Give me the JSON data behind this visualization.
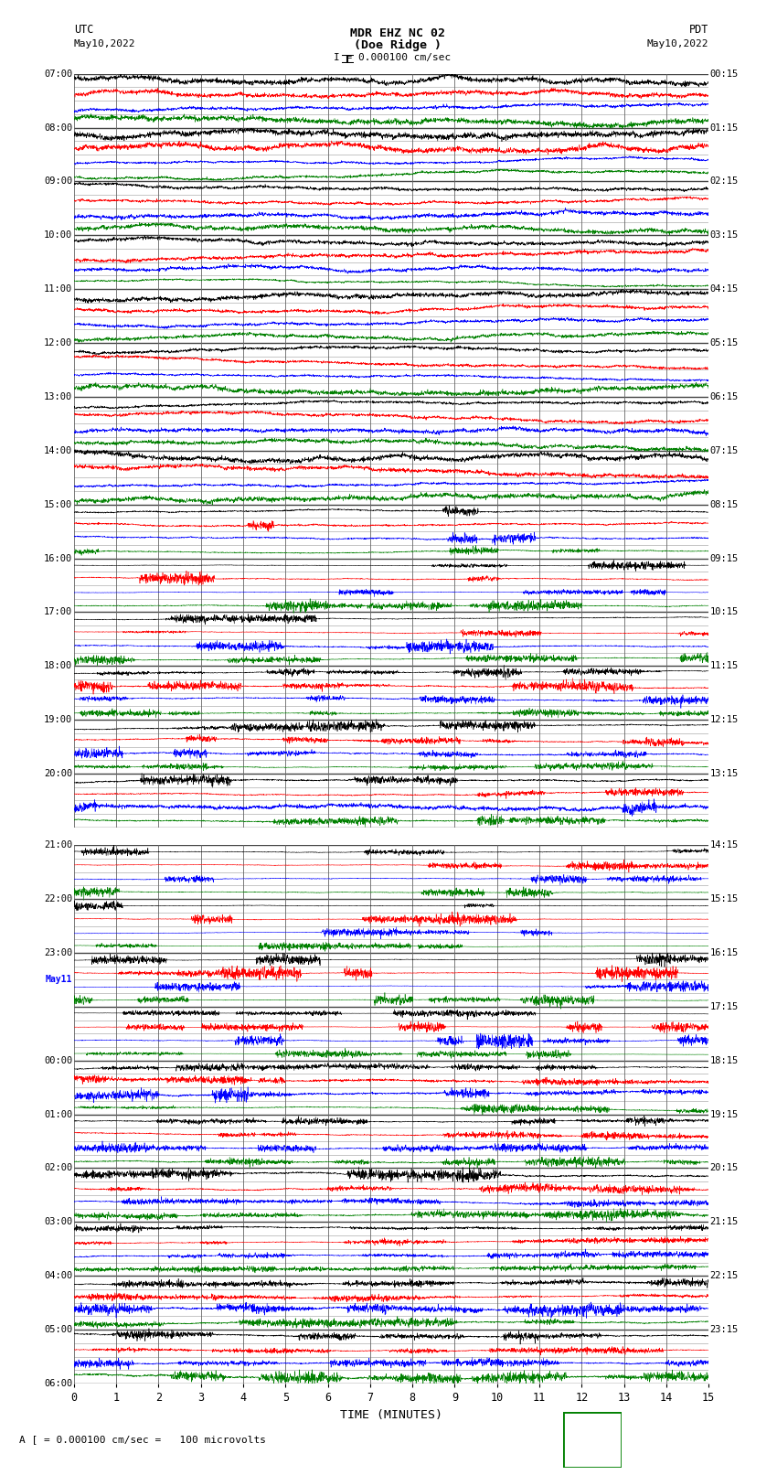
{
  "title_line1": "MDR EHZ NC 02",
  "title_line2": "(Doe Ridge )",
  "scale_label": "I = 0.000100 cm/sec",
  "utc_label": "UTC",
  "pdt_label": "PDT",
  "date_left": "May10,2022",
  "date_right": "May10,2022",
  "xlabel": "TIME (MINUTES)",
  "footer_label": "A [ = 0.000100 cm/sec =   100 microvolts",
  "xlim": [
    0,
    15
  ],
  "xticks": [
    0,
    1,
    2,
    3,
    4,
    5,
    6,
    7,
    8,
    9,
    10,
    11,
    12,
    13,
    14,
    15
  ],
  "colors": [
    "black",
    "red",
    "blue",
    "green"
  ],
  "bg_color": "#ffffff",
  "grid_color": "#888888",
  "panel1_utc_labels": [
    "07:00",
    "08:00",
    "09:00",
    "10:00",
    "11:00",
    "12:00",
    "13:00",
    "14:00",
    "15:00",
    "16:00",
    "17:00",
    "18:00",
    "19:00",
    "20:00"
  ],
  "panel1_pdt_labels": [
    "00:15",
    "01:15",
    "02:15",
    "03:15",
    "04:15",
    "05:15",
    "06:15",
    "07:15",
    "08:15",
    "09:15",
    "10:15",
    "11:15",
    "12:15",
    "13:15"
  ],
  "panel2_utc_labels": [
    "21:00",
    "22:00",
    "23:00",
    "May11",
    "00:00",
    "01:00",
    "02:00",
    "03:00",
    "04:00",
    "05:00",
    "06:00"
  ],
  "panel2_pdt_labels": [
    "14:15",
    "15:15",
    "16:15",
    "17:15",
    "18:15",
    "19:15",
    "20:15",
    "21:15",
    "22:15",
    "23:15"
  ],
  "num_traces_panel1": 14,
  "num_traces_panel2": 10,
  "seed": 42
}
